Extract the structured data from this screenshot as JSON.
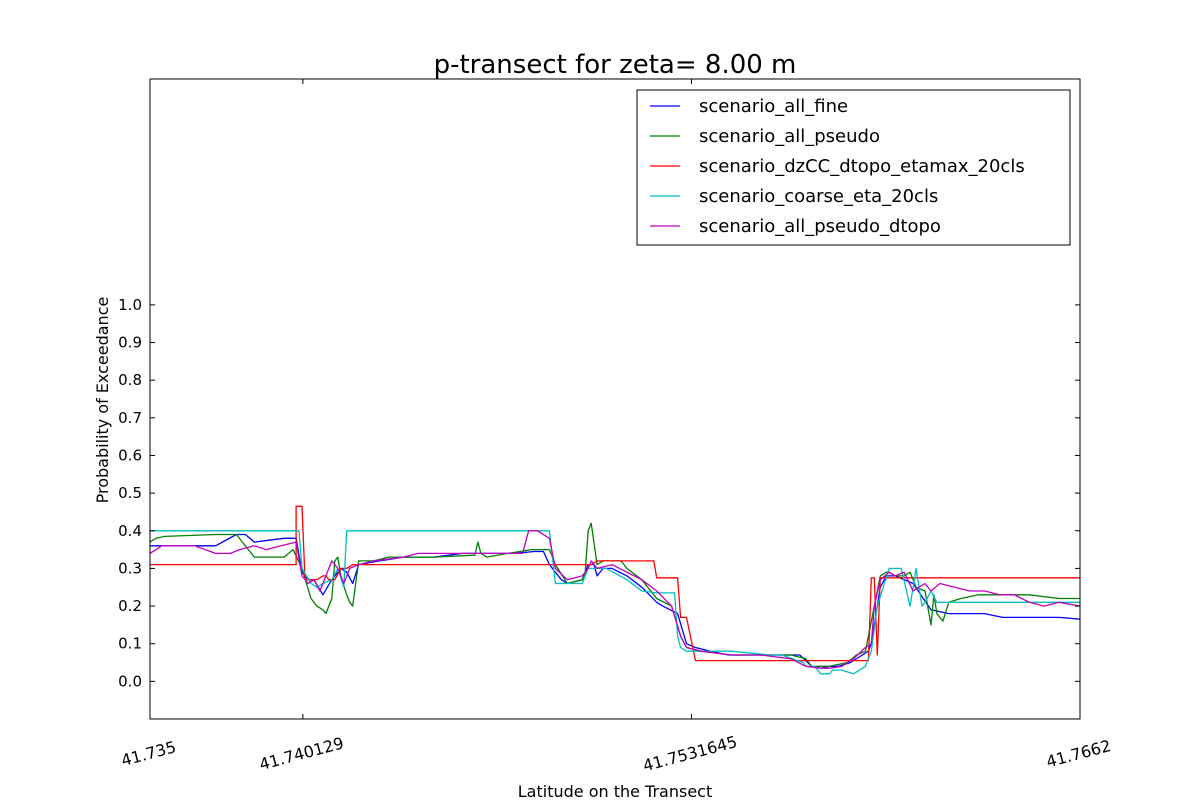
{
  "chart_data": {
    "type": "line",
    "title": "p-transect for zeta= 8.00 m",
    "xlabel": "Latitude on the Transect",
    "ylabel": "Probability of Exceedance",
    "xlim": [
      41.735,
      41.7662
    ],
    "ylim": [
      -0.1,
      1.6
    ],
    "x_ticks": [
      {
        "value": 41.735,
        "label": "41.735"
      },
      {
        "value": 41.740129,
        "label": "41.740129"
      },
      {
        "value": 41.7531645,
        "label": "41.7531645"
      },
      {
        "value": 41.7662,
        "label": "41.7662"
      }
    ],
    "y_ticks": [
      {
        "value": 0.0,
        "label": "0.0"
      },
      {
        "value": 0.1,
        "label": "0.1"
      },
      {
        "value": 0.2,
        "label": "0.2"
      },
      {
        "value": 0.3,
        "label": "0.3"
      },
      {
        "value": 0.4,
        "label": "0.4"
      },
      {
        "value": 0.5,
        "label": "0.5"
      },
      {
        "value": 0.6,
        "label": "0.6"
      },
      {
        "value": 0.7,
        "label": "0.7"
      },
      {
        "value": 0.8,
        "label": "0.8"
      },
      {
        "value": 0.9,
        "label": "0.9"
      },
      {
        "value": 1.0,
        "label": "1.0"
      }
    ],
    "grid": false,
    "legend_position": "top-right",
    "series": [
      {
        "name": "scenario_all_fine",
        "color": "#0000ff",
        "x": [
          41.735,
          41.7372,
          41.7379,
          41.7382,
          41.7385,
          41.739,
          41.7395,
          41.7399,
          41.7401,
          41.7403,
          41.7405,
          41.7408,
          41.7411,
          41.7414,
          41.7416,
          41.7418,
          41.742,
          41.7427,
          41.7435,
          41.7445,
          41.7455,
          41.7463,
          41.7472,
          41.7479,
          41.7482,
          41.7484,
          41.7488,
          41.749,
          41.7495,
          41.7496,
          41.7497,
          41.7499,
          41.75,
          41.7502,
          41.7505,
          41.751,
          41.7515,
          41.752,
          41.7522,
          41.7527,
          41.753,
          41.7533,
          41.7538,
          41.7541,
          41.7544,
          41.7547,
          41.755,
          41.7555,
          41.7562,
          41.7568,
          41.7572,
          41.7575,
          41.7578,
          41.7581,
          41.7585,
          41.7589,
          41.7591,
          41.7592,
          41.7593,
          41.7595,
          41.7597,
          41.7599,
          41.76,
          41.7606,
          41.7612,
          41.7618,
          41.7624,
          41.763,
          41.7636,
          41.7642,
          41.7648,
          41.7655,
          41.7662
        ],
        "y": [
          0.36,
          0.36,
          0.39,
          0.39,
          0.37,
          0.375,
          0.38,
          0.38,
          0.29,
          0.27,
          0.27,
          0.23,
          0.27,
          0.3,
          0.29,
          0.26,
          0.31,
          0.32,
          0.33,
          0.33,
          0.34,
          0.34,
          0.34,
          0.345,
          0.345,
          0.31,
          0.27,
          0.26,
          0.27,
          0.29,
          0.31,
          0.31,
          0.28,
          0.3,
          0.3,
          0.28,
          0.25,
          0.21,
          0.2,
          0.18,
          0.1,
          0.09,
          0.08,
          0.075,
          0.07,
          0.07,
          0.07,
          0.07,
          0.07,
          0.07,
          0.04,
          0.035,
          0.04,
          0.04,
          0.05,
          0.07,
          0.08,
          0.1,
          0.15,
          0.25,
          0.28,
          0.28,
          0.28,
          0.26,
          0.19,
          0.18,
          0.18,
          0.18,
          0.17,
          0.17,
          0.17,
          0.17,
          0.165
        ]
      },
      {
        "name": "scenario_all_pseudo",
        "color": "#008000",
        "x": [
          41.735,
          41.7352,
          41.7355,
          41.7372,
          41.7379,
          41.7385,
          41.7395,
          41.7398,
          41.7401,
          41.7404,
          41.7406,
          41.7408,
          41.7409,
          41.7411,
          41.7412,
          41.7413,
          41.7414,
          41.7416,
          41.7417,
          41.7418,
          41.742,
          41.7425,
          41.743,
          41.7445,
          41.7459,
          41.746,
          41.7461,
          41.7463,
          41.747,
          41.7478,
          41.7484,
          41.7486,
          41.749,
          41.7495,
          41.7496,
          41.7497,
          41.7498,
          41.75,
          41.7502,
          41.7508,
          41.751,
          41.7515,
          41.752,
          41.7525,
          41.7528,
          41.753,
          41.7535,
          41.7545,
          41.7555,
          41.7565,
          41.757,
          41.7572,
          41.7575,
          41.7578,
          41.7581,
          41.7584,
          41.7587,
          41.759,
          41.7591,
          41.7593,
          41.7595,
          41.7597,
          41.7598,
          41.76,
          41.7603,
          41.7605,
          41.7607,
          41.761,
          41.7612,
          41.7613,
          41.7614,
          41.7616,
          41.7618,
          41.7622,
          41.7628,
          41.7635,
          41.7645,
          41.7655,
          41.7662
        ],
        "y": [
          0.37,
          0.38,
          0.385,
          0.39,
          0.39,
          0.33,
          0.33,
          0.35,
          0.3,
          0.22,
          0.2,
          0.19,
          0.18,
          0.22,
          0.32,
          0.33,
          0.28,
          0.23,
          0.21,
          0.2,
          0.32,
          0.32,
          0.33,
          0.33,
          0.335,
          0.37,
          0.34,
          0.33,
          0.34,
          0.35,
          0.35,
          0.31,
          0.26,
          0.27,
          0.29,
          0.4,
          0.42,
          0.31,
          0.32,
          0.32,
          0.3,
          0.27,
          0.22,
          0.2,
          0.12,
          0.09,
          0.08,
          0.07,
          0.07,
          0.07,
          0.06,
          0.04,
          0.04,
          0.04,
          0.045,
          0.05,
          0.07,
          0.08,
          0.12,
          0.2,
          0.28,
          0.29,
          0.29,
          0.28,
          0.28,
          0.29,
          0.25,
          0.24,
          0.15,
          0.23,
          0.18,
          0.16,
          0.21,
          0.22,
          0.23,
          0.23,
          0.23,
          0.22,
          0.22
        ]
      },
      {
        "name": "scenario_dzCC_dtopo_etamax_20cls",
        "color": "#ff0000",
        "x": [
          41.735,
          41.7399,
          41.7399,
          41.7401,
          41.7402,
          41.7406,
          41.7408,
          41.7409,
          41.741,
          41.7412,
          41.7414,
          41.7416,
          41.7418,
          41.742,
          41.7435,
          41.7445,
          41.7484,
          41.7496,
          41.7498,
          41.75,
          41.7505,
          41.7519,
          41.752,
          41.7527,
          41.7528,
          41.753,
          41.7533,
          41.756,
          41.7573,
          41.7591,
          41.7592,
          41.7593,
          41.7594,
          41.7595,
          41.7596,
          41.7597,
          41.7662
        ],
        "y": [
          0.31,
          0.31,
          0.465,
          0.465,
          0.27,
          0.27,
          0.28,
          0.28,
          0.27,
          0.27,
          0.3,
          0.3,
          0.31,
          0.31,
          0.31,
          0.31,
          0.31,
          0.31,
          0.31,
          0.32,
          0.32,
          0.32,
          0.275,
          0.275,
          0.17,
          0.17,
          0.055,
          0.055,
          0.055,
          0.055,
          0.275,
          0.275,
          0.07,
          0.275,
          0.275,
          0.275,
          0.275
        ]
      },
      {
        "name": "scenario_coarse_eta_20cls",
        "color": "#00bfbf",
        "x": [
          41.735,
          41.7399,
          41.74,
          41.7401,
          41.7404,
          41.7406,
          41.7408,
          41.7411,
          41.7413,
          41.7415,
          41.7416,
          41.7484,
          41.7485,
          41.7486,
          41.7495,
          41.7497,
          41.7498,
          41.75,
          41.7503,
          41.751,
          41.7515,
          41.752,
          41.7526,
          41.7527,
          41.7528,
          41.753,
          41.7545,
          41.7558,
          41.7562,
          41.7569,
          41.757,
          41.7573,
          41.7575,
          41.7578,
          41.7579,
          41.7582,
          41.7586,
          41.759,
          41.7592,
          41.7594,
          41.7598,
          41.7602,
          41.7605,
          41.7607,
          41.7609,
          41.761,
          41.7612,
          41.7614,
          41.7617,
          41.7662
        ],
        "y": [
          0.4,
          0.4,
          0.4,
          0.3,
          0.26,
          0.25,
          0.26,
          0.27,
          0.3,
          0.25,
          0.4,
          0.4,
          0.33,
          0.26,
          0.26,
          0.3,
          0.3,
          0.3,
          0.3,
          0.27,
          0.24,
          0.235,
          0.235,
          0.12,
          0.09,
          0.08,
          0.08,
          0.07,
          0.07,
          0.05,
          0.04,
          0.04,
          0.02,
          0.02,
          0.03,
          0.03,
          0.02,
          0.04,
          0.08,
          0.2,
          0.3,
          0.3,
          0.2,
          0.3,
          0.2,
          0.21,
          0.24,
          0.21,
          0.21,
          0.21
        ]
      },
      {
        "name": "scenario_all_pseudo_dtopo",
        "color": "#bf00bf",
        "x": [
          41.735,
          41.7354,
          41.7365,
          41.7372,
          41.7377,
          41.738,
          41.7385,
          41.7389,
          41.7394,
          41.7399,
          41.7401,
          41.7403,
          41.7405,
          41.7407,
          41.7409,
          41.7411,
          41.7413,
          41.7415,
          41.7417,
          41.742,
          41.7425,
          41.7435,
          41.744,
          41.7445,
          41.745,
          41.7455,
          41.746,
          41.7465,
          41.747,
          41.7475,
          41.7477,
          41.748,
          41.7484,
          41.7486,
          41.749,
          41.7495,
          41.7497,
          41.7498,
          41.75,
          41.7505,
          41.751,
          41.7515,
          41.752,
          41.7525,
          41.7528,
          41.753,
          41.7535,
          41.7545,
          41.7555,
          41.7565,
          41.757,
          41.7575,
          41.7578,
          41.7582,
          41.7586,
          41.759,
          41.7592,
          41.7593,
          41.7595,
          41.7598,
          41.76,
          41.7603,
          41.7606,
          41.7608,
          41.761,
          41.7612,
          41.7615,
          41.762,
          41.7625,
          41.763,
          41.7635,
          41.764,
          41.7645,
          41.765,
          41.7655,
          41.7662
        ],
        "y": [
          0.34,
          0.36,
          0.36,
          0.34,
          0.34,
          0.35,
          0.36,
          0.35,
          0.36,
          0.37,
          0.28,
          0.26,
          0.27,
          0.24,
          0.28,
          0.32,
          0.3,
          0.26,
          0.3,
          0.31,
          0.32,
          0.33,
          0.34,
          0.34,
          0.34,
          0.34,
          0.34,
          0.34,
          0.34,
          0.34,
          0.4,
          0.4,
          0.38,
          0.3,
          0.27,
          0.28,
          0.3,
          0.32,
          0.3,
          0.31,
          0.29,
          0.27,
          0.24,
          0.2,
          0.12,
          0.09,
          0.08,
          0.07,
          0.07,
          0.06,
          0.04,
          0.035,
          0.035,
          0.04,
          0.06,
          0.09,
          0.1,
          0.2,
          0.27,
          0.29,
          0.28,
          0.29,
          0.24,
          0.25,
          0.26,
          0.24,
          0.26,
          0.25,
          0.24,
          0.24,
          0.23,
          0.23,
          0.21,
          0.2,
          0.21,
          0.2
        ]
      }
    ]
  }
}
